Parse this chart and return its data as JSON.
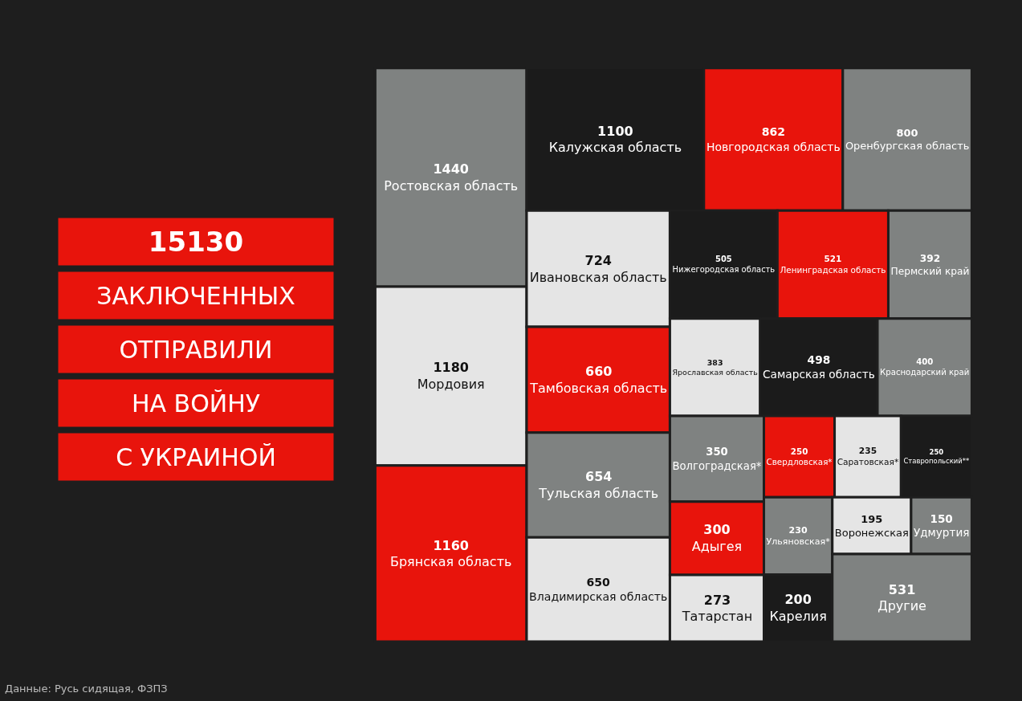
{
  "chart_data": {
    "type": "other",
    "title": "15130\nЗАКЛЮЧЕННЫХ\nОТПРАВИЛИ\nНА ВОЙНУ\nС УКРАИНОЙ",
    "annotations": [
      "Данные: Русь сидящая, ФЗПЗ"
    ],
    "categories": [
      "Ростовская область",
      "Мордовия",
      "Брянская область",
      "Калужская область",
      "Новгородская область",
      "Оренбургская область",
      "Ивановская область",
      "Тамбовская область",
      "Тульская область",
      "Владимирская область",
      "Нижегородская область",
      "Ленинградская область",
      "Пермский край",
      "Ярославская область",
      "Самарская область",
      "Краснодарский край",
      "Волгоградская*",
      "Адыгея",
      "Татарстан",
      "Свердловская*",
      "Саратовская*",
      "Ставропольский**",
      "Ульяновская*",
      "Карелия",
      "Воронежская",
      "Удмуртия",
      "Другие"
    ],
    "values": [
      1440,
      1180,
      1160,
      1100,
      862,
      800,
      724,
      660,
      654,
      650,
      505,
      521,
      392,
      383,
      498,
      400,
      350,
      300,
      273,
      250,
      235,
      250,
      230,
      200,
      195,
      150,
      531
    ],
    "colors": [
      "#7f8281",
      "#e5e5e5",
      "#e8140c",
      "#1b1b1b",
      "#e8140c",
      "#7f8281",
      "#e5e5e5",
      "#e8140c",
      "#7f8281",
      "#e5e5e5",
      "#1b1b1b",
      "#e8140c",
      "#7f8281",
      "#e5e5e5",
      "#1b1b1b",
      "#7f8281",
      "#7f8281",
      "#e8140c",
      "#e5e5e5",
      "#e8140c",
      "#e5e5e5",
      "#1b1b1b",
      "#7f8281",
      "#1b1b1b",
      "#e5e5e5",
      "#7f8281",
      "#7f8281"
    ],
    "data_labels": true
  }
}
